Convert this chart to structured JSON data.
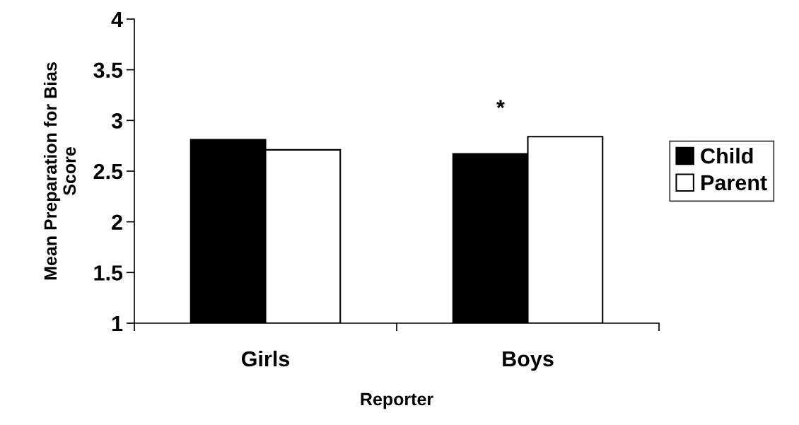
{
  "chart_data": {
    "type": "bar",
    "xlabel": "Reporter",
    "ylabel": "Mean Preparation for Bias\nScore",
    "categories": [
      "Girls",
      "Boys"
    ],
    "series": [
      {
        "name": "Child",
        "color": "#000000",
        "values": [
          2.81,
          2.67
        ]
      },
      {
        "name": "Parent",
        "color": "#ffffff",
        "values": [
          2.71,
          2.84
        ]
      }
    ],
    "ylim": [
      1,
      4
    ],
    "yticks": [
      1,
      1.5,
      2,
      2.5,
      3,
      3.5,
      4
    ],
    "grid": false,
    "legend": "right",
    "annotations": [
      "*"
    ]
  }
}
